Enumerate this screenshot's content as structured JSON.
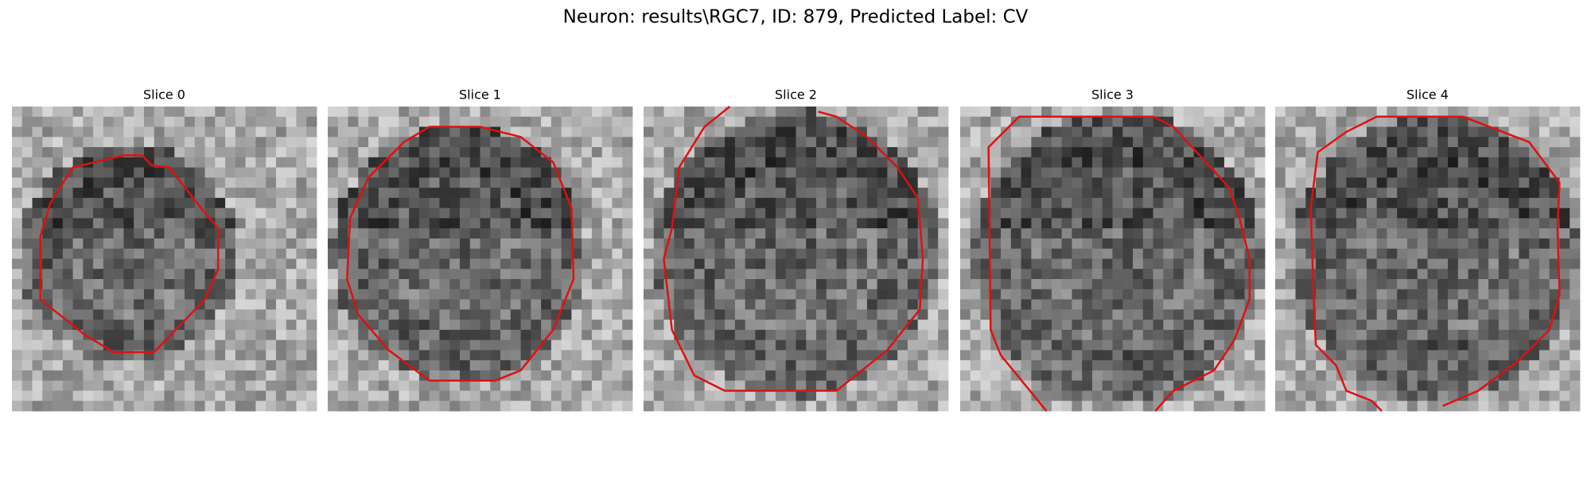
{
  "title": "Neuron: results\\RGC7, ID: 879, Predicted Label: CV",
  "panels": [
    {
      "title": "Slice 0"
    },
    {
      "title": "Slice 1"
    },
    {
      "title": "Slice 2"
    },
    {
      "title": "Slice 3"
    },
    {
      "title": "Slice 4"
    }
  ]
}
